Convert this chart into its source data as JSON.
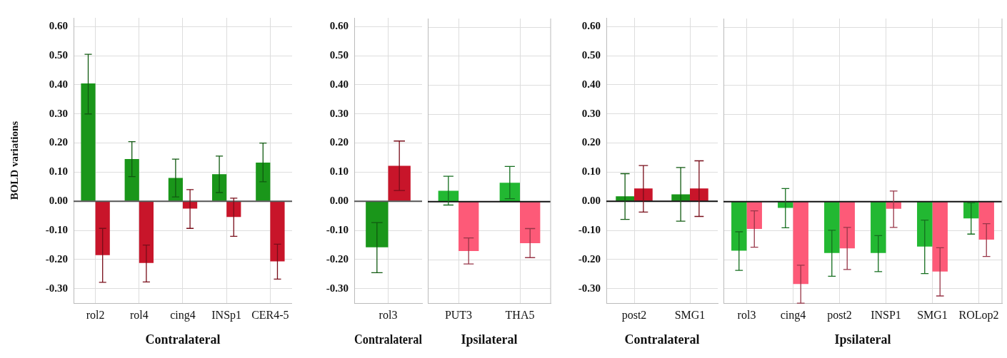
{
  "chart_data": [
    {
      "type": "bar",
      "categories": [
        "rol2",
        "rol4",
        "cing4",
        "INSp1",
        "CER4-5"
      ],
      "xlabel": "Contralateral",
      "ylabel": "BOLD variations",
      "ylim": [
        -0.35,
        0.63
      ],
      "yticks": [
        {
          "value": -0.3,
          "label": "-0.30"
        },
        {
          "value": -0.2,
          "label": "-0.20"
        },
        {
          "value": -0.1,
          "label": "-0.10"
        },
        {
          "value": 0,
          "label": "0.00"
        },
        {
          "value": 0.1,
          "label": "0.10"
        },
        {
          "value": 0.2,
          "label": "0.20"
        },
        {
          "value": 0.3,
          "label": "0.30"
        },
        {
          "value": 0.4,
          "label": "0.40"
        },
        {
          "value": 0.5,
          "label": "0.50"
        },
        {
          "value": 0.6,
          "label": "0.60"
        }
      ],
      "grid": true,
      "ref_lines": [
        {
          "axis": "y",
          "value": 0,
          "color": "#555555"
        }
      ],
      "series": [
        {
          "color": "#1a961a",
          "values": [
            0.405,
            0.145,
            0.08,
            0.093,
            0.133
          ],
          "errors": [
            [
              0.3,
              0.505
            ],
            [
              0.085,
              0.205
            ],
            [
              0.015,
              0.145
            ],
            [
              0.03,
              0.155
            ],
            [
              0.067,
              0.2
            ]
          ]
        },
        {
          "color": "#c8152a",
          "values": [
            -0.185,
            -0.212,
            -0.025,
            -0.054,
            -0.206
          ],
          "errors": [
            [
              -0.278,
              -0.093
            ],
            [
              -0.277,
              -0.15
            ],
            [
              -0.093,
              0.04
            ],
            [
              -0.12,
              0.011
            ],
            [
              -0.267,
              -0.147
            ]
          ]
        }
      ]
    },
    {
      "type": "bar",
      "categories": [
        "rol3"
      ],
      "xlabel": "Contralateral",
      "ylim": [
        -0.35,
        0.63
      ],
      "yticks": [
        {
          "value": -0.3,
          "label": "-0.30"
        },
        {
          "value": -0.2,
          "label": "-0.20"
        },
        {
          "value": -0.1,
          "label": "-0.10"
        },
        {
          "value": 0,
          "label": "0.00"
        },
        {
          "value": 0.1,
          "label": "0.10"
        },
        {
          "value": 0.2,
          "label": "0.20"
        },
        {
          "value": 0.3,
          "label": "0.30"
        },
        {
          "value": 0.4,
          "label": "0.40"
        },
        {
          "value": 0.5,
          "label": "0.50"
        },
        {
          "value": 0.6,
          "label": "0.60"
        }
      ],
      "grid": true,
      "ref_lines": [
        {
          "axis": "y",
          "value": 0,
          "color": "#555555"
        }
      ],
      "series": [
        {
          "color": "#1a961a",
          "values": [
            -0.158
          ],
          "errors": [
            [
              -0.245,
              -0.073
            ]
          ]
        },
        {
          "color": "#c8152a",
          "values": [
            0.122
          ],
          "errors": [
            [
              0.037,
              0.207
            ]
          ]
        }
      ]
    },
    {
      "type": "bar",
      "categories": [
        "PUT3",
        "THA5"
      ],
      "xlabel": "Ipsilateral",
      "ylim": [
        -0.35,
        0.63
      ],
      "yticks": [
        -0.3,
        -0.2,
        -0.1,
        0,
        0.1,
        0.2,
        0.3,
        0.4,
        0.5,
        0.6
      ],
      "tick_labels": "x",
      "grid": true,
      "ref_lines": [
        {
          "axis": "y",
          "value": 0,
          "color": "#111111"
        }
      ],
      "series": [
        {
          "color": "#22b832",
          "values": [
            0.037,
            0.065
          ],
          "errors": [
            [
              -0.012,
              0.087
            ],
            [
              0.01,
              0.121
            ]
          ]
        },
        {
          "color": "#fd5a78",
          "values": [
            -0.17,
            -0.143
          ],
          "errors": [
            [
              -0.215,
              -0.125
            ],
            [
              -0.193,
              -0.093
            ]
          ]
        }
      ]
    },
    {
      "type": "bar",
      "categories": [
        "post2",
        "SMG1"
      ],
      "xlabel": "Contralateral",
      "ylim": [
        -0.35,
        0.63
      ],
      "yticks": [
        {
          "value": -0.3,
          "label": "-0.30"
        },
        {
          "value": -0.2,
          "label": "-0.20"
        },
        {
          "value": -0.1,
          "label": "-0.10"
        },
        {
          "value": 0,
          "label": "0.00"
        },
        {
          "value": 0.1,
          "label": "0.10"
        },
        {
          "value": 0.2,
          "label": "0.20"
        },
        {
          "value": 0.3,
          "label": "0.30"
        },
        {
          "value": 0.4,
          "label": "0.40"
        },
        {
          "value": 0.5,
          "label": "0.50"
        },
        {
          "value": 0.6,
          "label": "0.60"
        }
      ],
      "grid": true,
      "ref_lines": [
        {
          "axis": "y",
          "value": 0,
          "color": "#111111"
        }
      ],
      "series": [
        {
          "color": "#1a961a",
          "values": [
            0.017,
            0.024
          ],
          "errors": [
            [
              -0.062,
              0.095
            ],
            [
              -0.068,
              0.116
            ]
          ]
        },
        {
          "color": "#c8152a",
          "values": [
            0.044,
            0.044
          ],
          "errors": [
            [
              -0.037,
              0.123
            ],
            [
              -0.052,
              0.139
            ]
          ]
        }
      ]
    },
    {
      "type": "bar",
      "categories": [
        "rol3",
        "cing4",
        "post2",
        "INSP1",
        "SMG1",
        "ROLop2"
      ],
      "xlabel": "Ipsilateral",
      "ylim": [
        -0.35,
        0.63
      ],
      "yticks": [
        -0.3,
        -0.2,
        -0.1,
        0,
        0.1,
        0.2,
        0.3,
        0.4,
        0.5,
        0.6
      ],
      "tick_labels": "x",
      "grid": true,
      "ref_lines": [
        {
          "axis": "y",
          "value": 0,
          "color": "#111111"
        }
      ],
      "series": [
        {
          "color": "#22b832",
          "values": [
            -0.169,
            -0.022,
            -0.177,
            -0.177,
            -0.155,
            -0.058
          ],
          "errors": [
            [
              -0.237,
              -0.104
            ],
            [
              -0.09,
              0.045
            ],
            [
              -0.257,
              -0.099
            ],
            [
              -0.241,
              -0.117
            ],
            [
              -0.248,
              -0.064
            ],
            [
              -0.112,
              -0.004
            ]
          ]
        },
        {
          "color": "#fd5a78",
          "values": [
            -0.094,
            -0.284,
            -0.161,
            -0.025,
            -0.241,
            -0.131
          ],
          "errors": [
            [
              -0.157,
              -0.032
            ],
            [
              -0.35,
              -0.219
            ],
            [
              -0.234,
              -0.089
            ],
            [
              -0.089,
              0.036
            ],
            [
              -0.325,
              -0.159
            ],
            [
              -0.189,
              -0.076
            ]
          ]
        }
      ]
    }
  ]
}
